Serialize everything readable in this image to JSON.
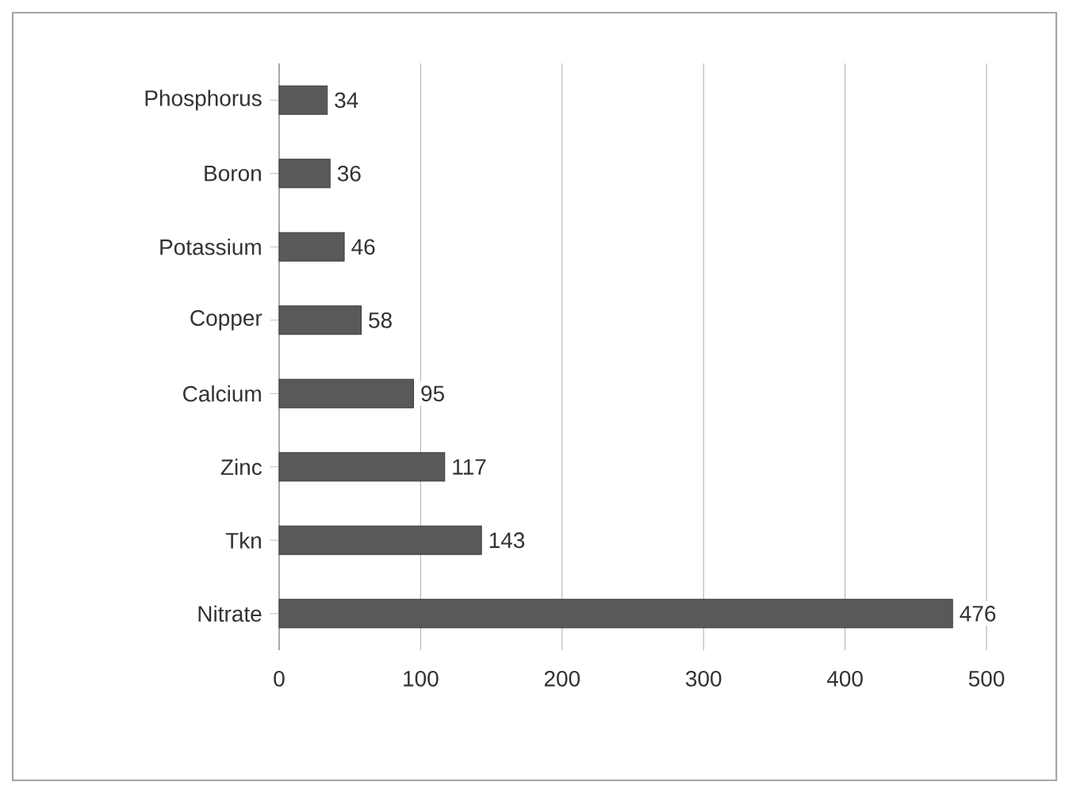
{
  "chart_data": {
    "type": "bar",
    "orientation": "horizontal",
    "categories": [
      "Phosphorus",
      "Boron",
      "Potassium",
      "Copper",
      "Calcium",
      "Zinc",
      "Tkn",
      "Nitrate"
    ],
    "values": [
      34,
      36,
      46,
      58,
      95,
      117,
      143,
      476
    ],
    "color": "#595959",
    "xlim": [
      0,
      500
    ],
    "xticks": [
      0,
      100,
      200,
      300,
      400,
      500
    ],
    "grid": "x",
    "data_labels": true
  }
}
